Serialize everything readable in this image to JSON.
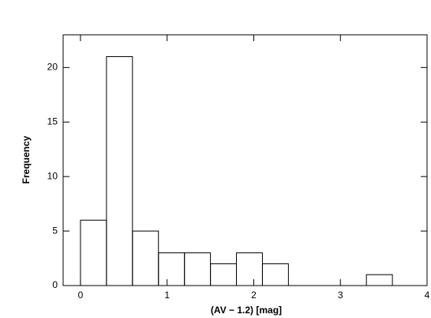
{
  "chart_data": {
    "type": "histogram",
    "xlabel": "(AV − 1.2) [mag]",
    "ylabel": "Frequency",
    "bins": [
      0,
      0.3,
      0.6,
      0.9,
      1.2,
      1.5,
      1.8,
      2.1,
      2.4,
      2.7,
      3.0,
      3.3,
      3.6
    ],
    "values": [
      6,
      21,
      5,
      3,
      3,
      2,
      3,
      2,
      0,
      0,
      0,
      1
    ],
    "color": "#000000",
    "xlim": [
      -0.2,
      4
    ],
    "xticks": [
      0,
      1,
      2,
      3,
      4
    ],
    "ylim": [
      0,
      23
    ],
    "yticks": [
      0,
      5,
      10,
      15,
      20
    ]
  }
}
